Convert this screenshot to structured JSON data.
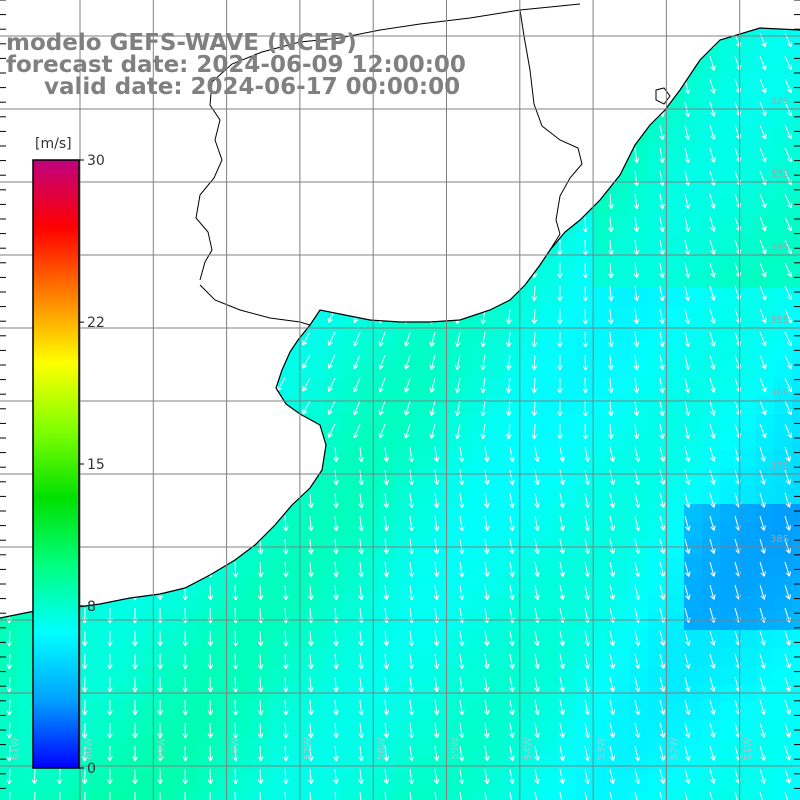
{
  "title": {
    "line1": "modelo GEFS-WAVE (NCEP)",
    "line2": "forecast date: 2024-06-09 12:00:00",
    "line3": "valid date: 2024-06-17 00:00:00"
  },
  "colorbar": {
    "unit": "[m/s]",
    "ticks": [
      "30",
      "22",
      "15",
      "8",
      "0"
    ],
    "tick_values": [
      30,
      22,
      15,
      8,
      0
    ],
    "range": [
      0,
      30
    ],
    "colors": [
      "#0000ff",
      "#00a0ff",
      "#00ffff",
      "#00ff80",
      "#00e000",
      "#80ff00",
      "#ffff00",
      "#ff8000",
      "#ff0000",
      "#c0007f"
    ]
  },
  "lat_labels": [
    "32S",
    "33S",
    "34S",
    "35S",
    "36S",
    "37S",
    "38S"
  ],
  "lon_labels": [
    "61W",
    "60W",
    "59W",
    "58W",
    "57W",
    "56W",
    "55W",
    "54W",
    "53W",
    "52W",
    "51W"
  ],
  "colors": {
    "land": "#ffffff",
    "coast": "#000000",
    "grid": "#808080",
    "title": "#808080",
    "arrow": "#ffffff"
  }
}
